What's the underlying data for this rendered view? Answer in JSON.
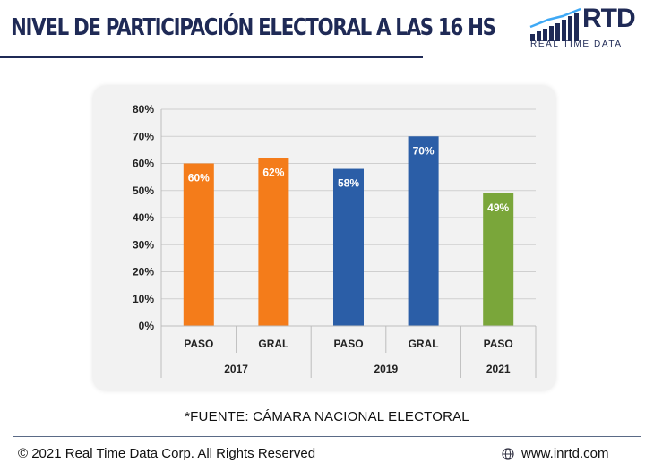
{
  "header": {
    "title": "NIVEL DE PARTICIPACIÓN ELECTORAL A LAS 16 HS",
    "logo_text": "RTD",
    "logo_subtitle": "REAL TIME DATA",
    "logo_icon": "bar-chart-logo-icon"
  },
  "chart_data": {
    "type": "bar",
    "categories": [
      "PASO",
      "GRAL",
      "PASO",
      "GRAL",
      "PASO"
    ],
    "groups": [
      {
        "label": "2017",
        "span": 2
      },
      {
        "label": "2019",
        "span": 2
      },
      {
        "label": "2021",
        "span": 1
      }
    ],
    "values": [
      60,
      62,
      58,
      70,
      49
    ],
    "data_labels": [
      "60%",
      "62%",
      "58%",
      "70%",
      "49%"
    ],
    "colors": [
      "#f47c1a",
      "#f47c1a",
      "#2b5ea7",
      "#2b5ea7",
      "#7aa63a"
    ],
    "yticks": [
      "0%",
      "10%",
      "20%",
      "30%",
      "40%",
      "50%",
      "60%",
      "70%",
      "80%"
    ],
    "ylim": [
      0,
      80
    ],
    "grid": true,
    "legend": "none"
  },
  "footer": {
    "source": "*FUENTE: CÁMARA NACIONAL ELECTORAL",
    "copyright": "© 2021 Real Time Data Corp. All Rights Reserved",
    "website": "www.inrtd.com",
    "website_icon": "globe-icon"
  }
}
